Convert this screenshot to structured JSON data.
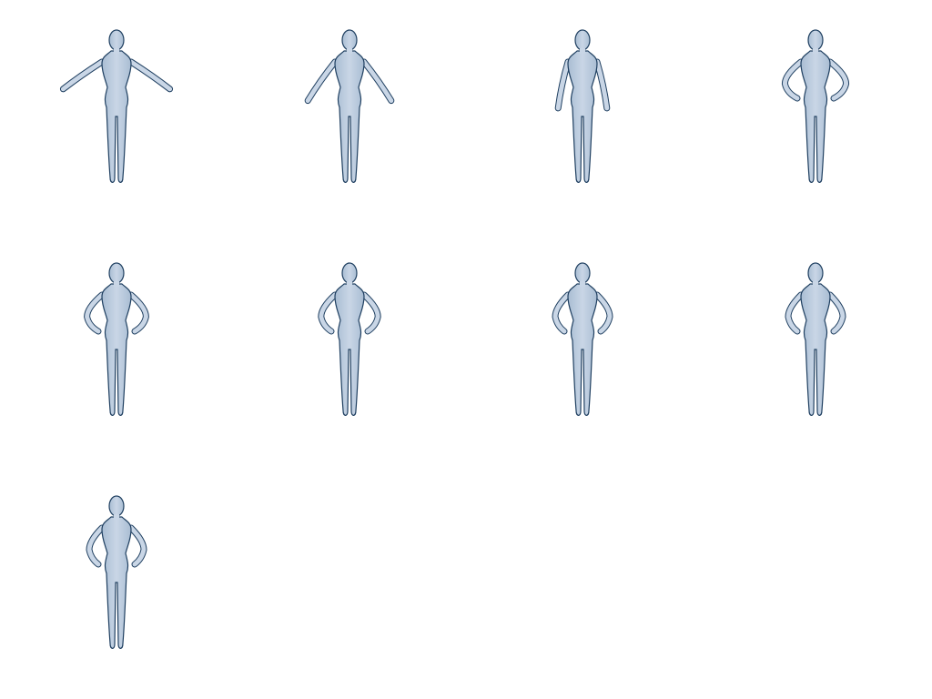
{
  "scene": {
    "background": "#ffffff",
    "figure_fill": "#c9d6e6",
    "figure_stroke": "#1f3f60",
    "figure_shade": "#a9bdd3"
  },
  "figures": [
    {
      "pose": "arms-out-low",
      "arm_angle_deg": 55
    },
    {
      "pose": "arms-out-lower",
      "arm_angle_deg": 35
    },
    {
      "pose": "arms-down-slight",
      "arm_angle_deg": 12
    },
    {
      "pose": "hands-near-hips",
      "arm_angle_deg": 6
    },
    {
      "pose": "hands-on-hips",
      "arm_angle_deg": 4
    },
    {
      "pose": "hands-on-hips-tight",
      "arm_angle_deg": 2
    },
    {
      "pose": "hands-on-hips-tighter",
      "arm_angle_deg": 0
    },
    {
      "pose": "hands-on-waist",
      "arm_angle_deg": -2
    },
    {
      "pose": "hands-on-waist-close",
      "arm_angle_deg": -4
    }
  ]
}
